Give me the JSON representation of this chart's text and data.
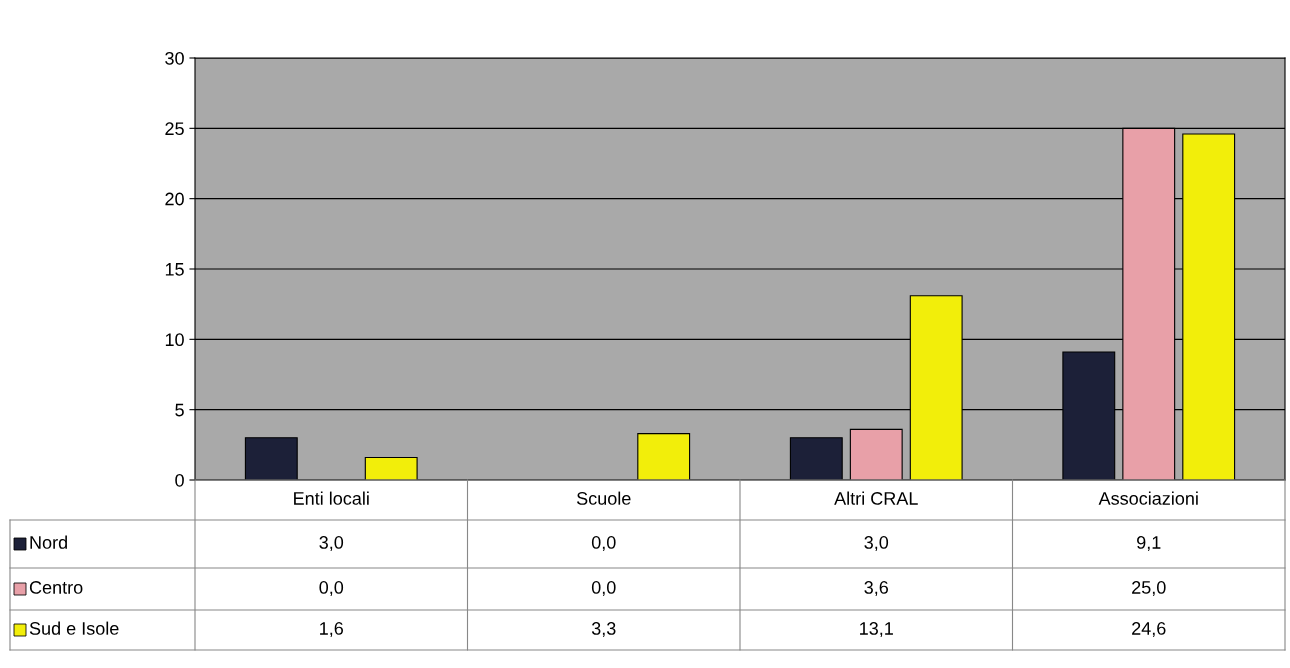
{
  "chart_data": {
    "type": "bar",
    "categories": [
      "Enti locali",
      "Scuole",
      "Altri CRAL",
      "Associazioni"
    ],
    "series": [
      {
        "name": "Nord",
        "color": "#1c2038",
        "values": [
          3.0,
          0.0,
          3.0,
          9.1
        ],
        "value_labels": [
          "3,0",
          "0,0",
          "3,0",
          "9,1"
        ]
      },
      {
        "name": "Centro",
        "color": "#e8a0a8",
        "values": [
          0.0,
          0.0,
          3.6,
          25.0
        ],
        "value_labels": [
          "0,0",
          "0,0",
          "3,6",
          "25,0"
        ]
      },
      {
        "name": "Sud e Isole",
        "color": "#f2ee0a",
        "values": [
          1.6,
          3.3,
          13.1,
          24.6
        ],
        "value_labels": [
          "1,6",
          "3,3",
          "13,1",
          "24,6"
        ]
      }
    ],
    "ylim": [
      0,
      30
    ],
    "yticks": [
      0,
      5,
      10,
      15,
      20,
      25,
      30
    ],
    "grid": "y",
    "legend": "bottom"
  }
}
